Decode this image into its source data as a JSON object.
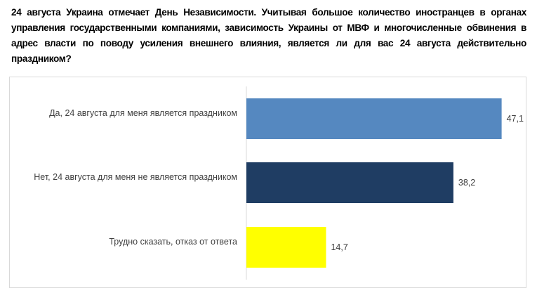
{
  "title": "24 августа Украина отмечает День Независимости. Учитывая большое количество иностранцев в органах управления государственными компаниями, зависимость Украины от МВФ и многочисленные обвинения в адрес власти по поводу усиления внешнего влияния, является ли для вас 24 августа действительно праздником?",
  "chart_data": {
    "type": "bar",
    "orientation": "horizontal",
    "categories": [
      "Да, 24 августа для меня является праздником",
      "Нет, 24 августа для меня не является праздником",
      "Трудно сказать, отказ от ответа"
    ],
    "values": [
      47.1,
      38.2,
      14.7
    ],
    "value_labels": [
      "47,1",
      "38,2",
      "14,7"
    ],
    "colors": [
      "#5588c0",
      "#1f3d63",
      "#ffff00"
    ],
    "xlim": [
      0,
      50
    ],
    "grid": false,
    "legend": "none"
  }
}
